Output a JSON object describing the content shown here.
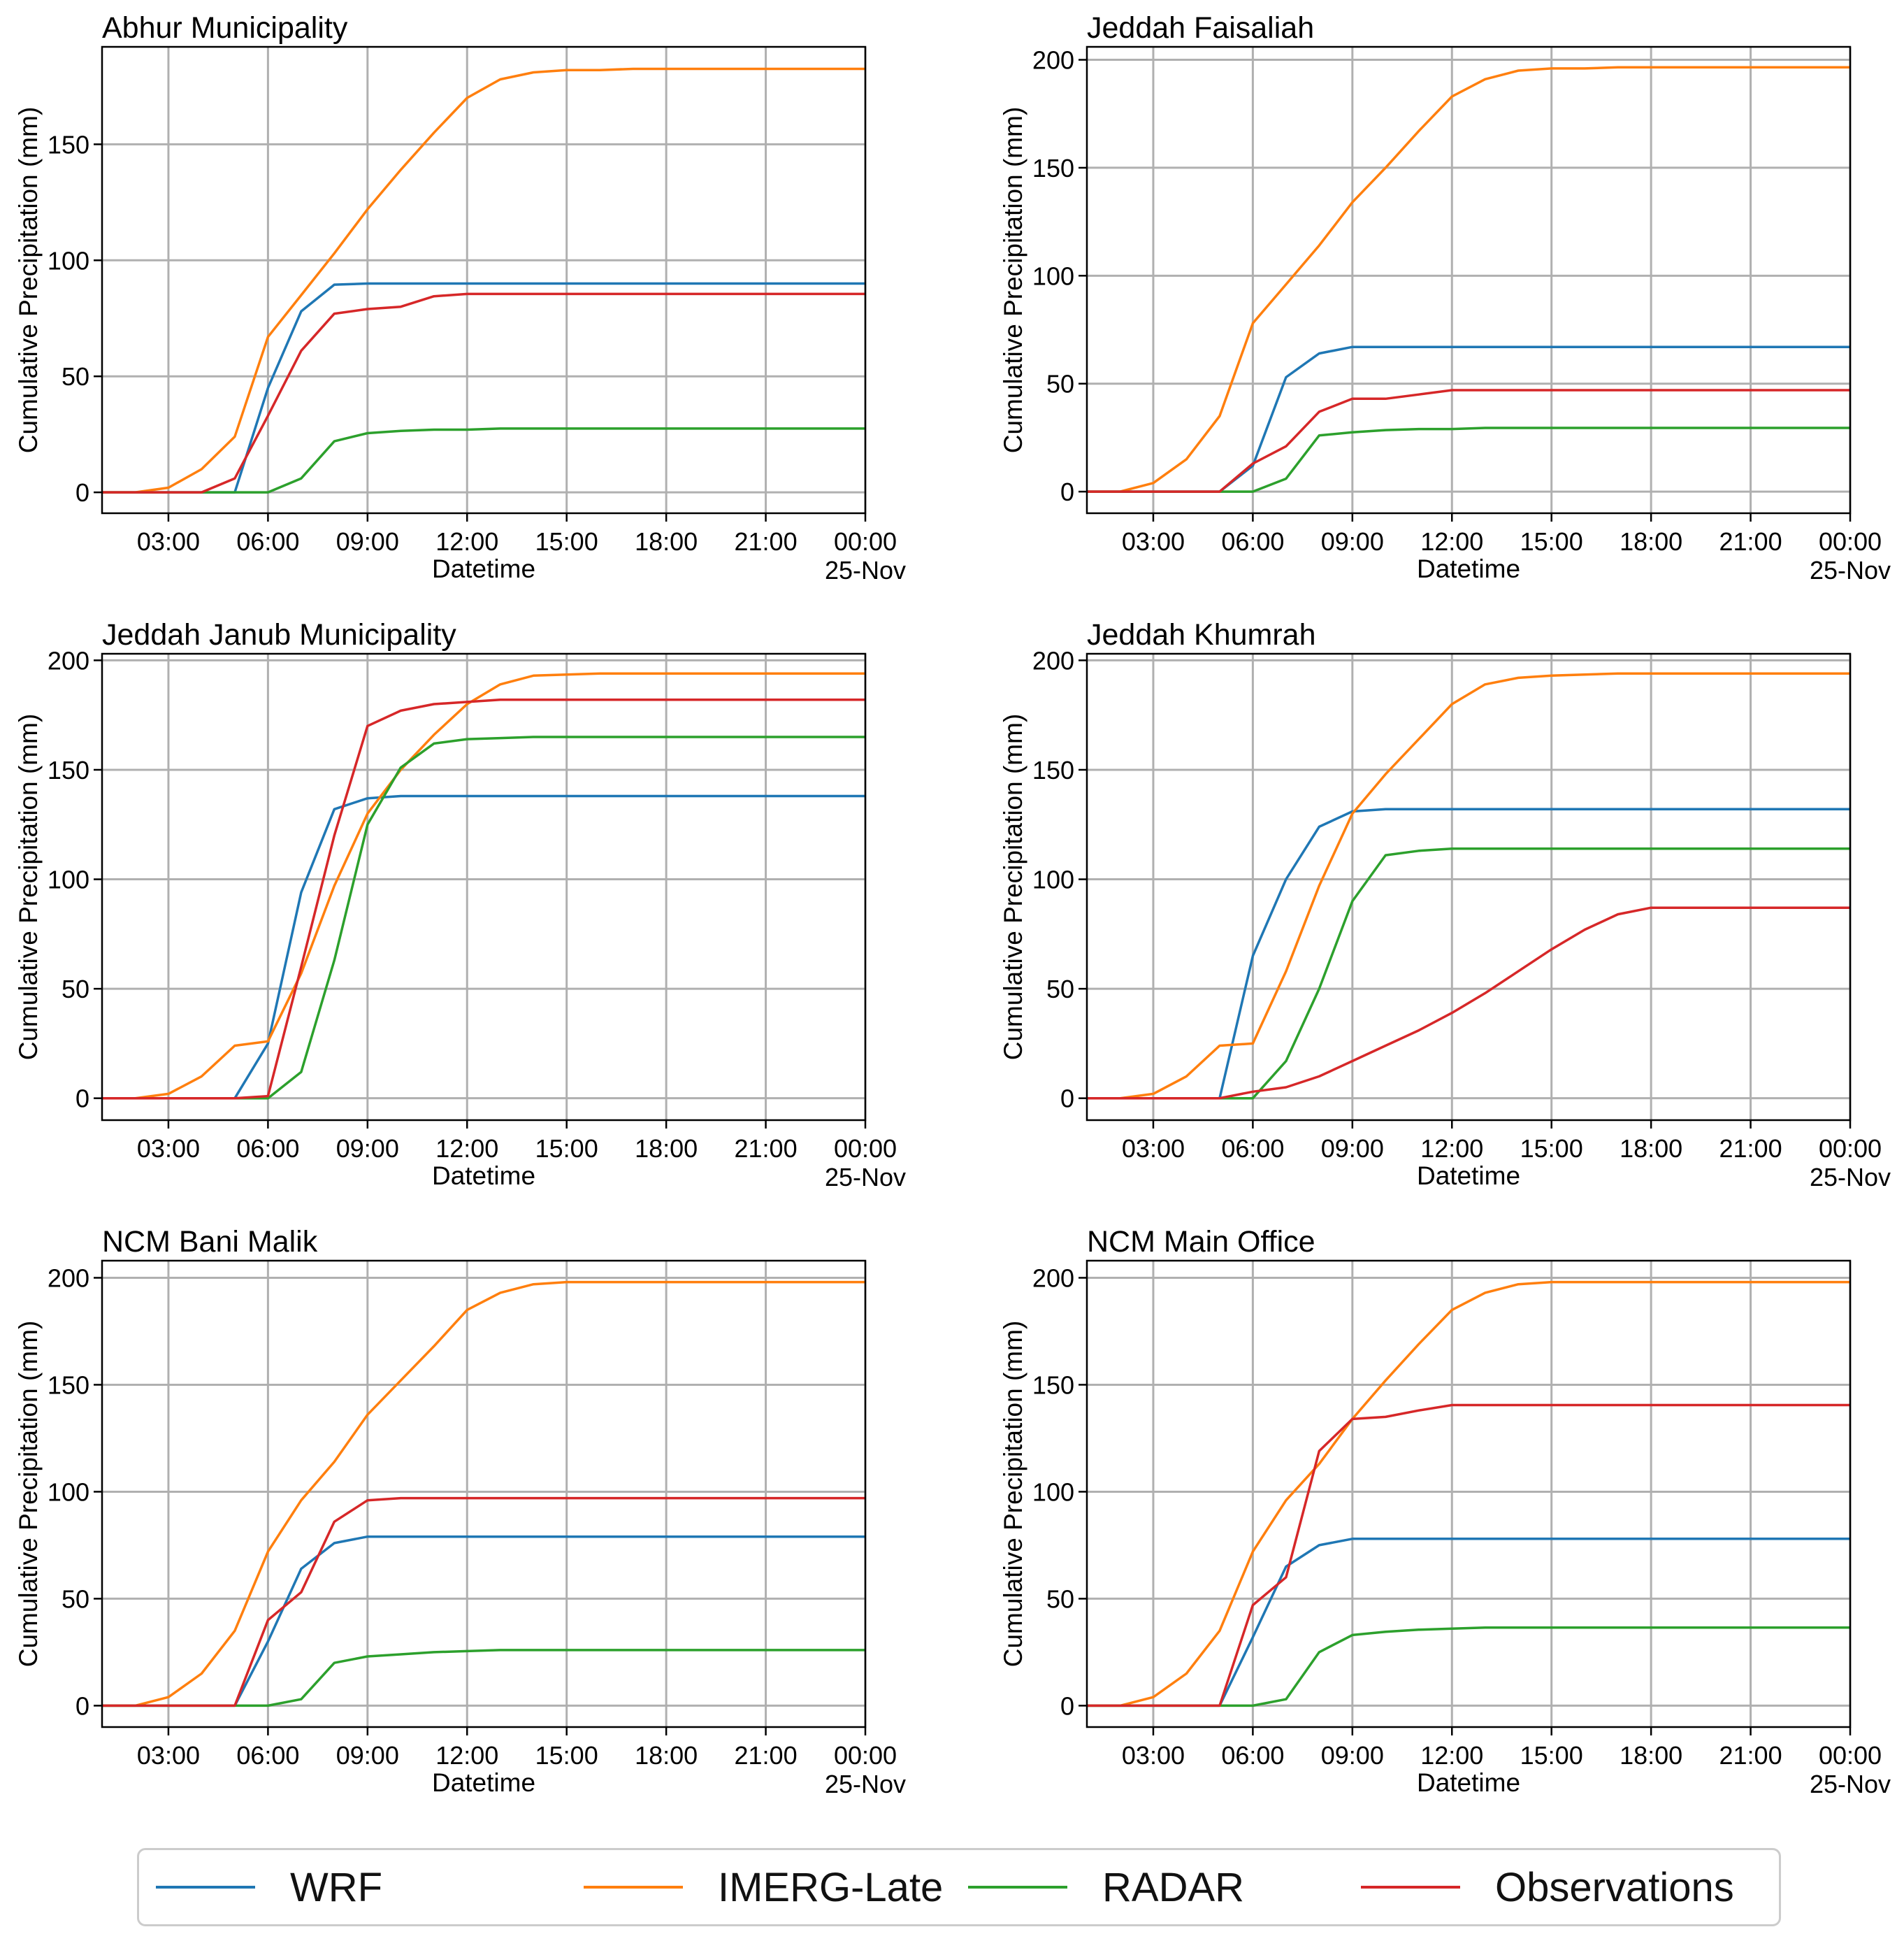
{
  "chart_data": [
    {
      "type": "line",
      "title": "Abhur Municipality",
      "xlabel": "Datetime",
      "ylabel": "Cumulative Precipitation (mm)",
      "xlim": [
        1,
        24
      ],
      "ylim": [
        -9,
        192
      ],
      "yticks": [
        0,
        50,
        100,
        150
      ],
      "x": [
        1,
        2,
        3,
        4,
        5,
        6,
        7,
        8,
        9,
        10,
        11,
        12,
        13,
        14,
        15,
        16,
        17,
        18,
        19,
        20,
        21,
        22,
        23,
        24
      ],
      "series": [
        {
          "name": "WRF",
          "values": [
            0,
            0,
            0,
            0,
            0,
            45,
            78,
            89.5,
            90,
            90,
            90,
            90,
            90,
            90,
            90,
            90,
            90,
            90,
            90,
            90,
            90,
            90,
            90,
            90
          ]
        },
        {
          "name": "IMERG-Late",
          "values": [
            0,
            0,
            2,
            10,
            24,
            67,
            85,
            103,
            122,
            139,
            155,
            170,
            178,
            181,
            182,
            182,
            182.5,
            182.5,
            182.5,
            182.5,
            182.5,
            182.5,
            182.5,
            182.5
          ]
        },
        {
          "name": "RADAR",
          "values": [
            0,
            0,
            0,
            0,
            0,
            0,
            6,
            22,
            25.5,
            26.5,
            27,
            27,
            27.5,
            27.5,
            27.5,
            27.5,
            27.5,
            27.5,
            27.5,
            27.5,
            27.5,
            27.5,
            27.5,
            27.5
          ]
        },
        {
          "name": "Observations",
          "values": [
            0,
            0,
            0,
            0,
            6,
            33,
            61,
            77,
            79,
            80,
            84.5,
            85.5,
            85.5,
            85.5,
            85.5,
            85.5,
            85.5,
            85.5,
            85.5,
            85.5,
            85.5,
            85.5,
            85.5,
            85.5
          ]
        }
      ]
    },
    {
      "type": "line",
      "title": "Jeddah Faisaliah",
      "xlabel": "Datetime",
      "ylabel": "Cumulative Precipitation (mm)",
      "xlim": [
        1,
        24
      ],
      "ylim": [
        -10,
        206
      ],
      "yticks": [
        0,
        50,
        100,
        150,
        200
      ],
      "x": [
        1,
        2,
        3,
        4,
        5,
        6,
        7,
        8,
        9,
        10,
        11,
        12,
        13,
        14,
        15,
        16,
        17,
        18,
        19,
        20,
        21,
        22,
        23,
        24
      ],
      "series": [
        {
          "name": "WRF",
          "values": [
            0,
            0,
            0,
            0,
            0,
            12,
            53,
            64,
            67,
            67,
            67,
            67,
            67,
            67,
            67,
            67,
            67,
            67,
            67,
            67,
            67,
            67,
            67,
            67
          ]
        },
        {
          "name": "IMERG-Late",
          "values": [
            0,
            0,
            4,
            15,
            35,
            78,
            96,
            114,
            134,
            150,
            167,
            183,
            191,
            195,
            196,
            196,
            196.5,
            196.5,
            196.5,
            196.5,
            196.5,
            196.5,
            196.5,
            196.5
          ]
        },
        {
          "name": "RADAR",
          "values": [
            0,
            0,
            0,
            0,
            0,
            0,
            6,
            26,
            27.5,
            28.5,
            29,
            29,
            29.5,
            29.5,
            29.5,
            29.5,
            29.5,
            29.5,
            29.5,
            29.5,
            29.5,
            29.5,
            29.5,
            29.5
          ]
        },
        {
          "name": "Observations",
          "values": [
            0,
            0,
            0,
            0,
            0,
            13,
            21,
            37,
            43,
            43,
            45,
            47,
            47,
            47,
            47,
            47,
            47,
            47,
            47,
            47,
            47,
            47,
            47,
            47
          ]
        }
      ]
    },
    {
      "type": "line",
      "title": "Jeddah Janub Municipality",
      "xlabel": "Datetime",
      "ylabel": "Cumulative Precipitation (mm)",
      "xlim": [
        1,
        24
      ],
      "ylim": [
        -10,
        203
      ],
      "yticks": [
        0,
        50,
        100,
        150,
        200
      ],
      "x": [
        1,
        2,
        3,
        4,
        5,
        6,
        7,
        8,
        9,
        10,
        11,
        12,
        13,
        14,
        15,
        16,
        17,
        18,
        19,
        20,
        21,
        22,
        23,
        24
      ],
      "series": [
        {
          "name": "WRF",
          "values": [
            0,
            0,
            0,
            0,
            0,
            25,
            94,
            132,
            137,
            138,
            138,
            138,
            138,
            138,
            138,
            138,
            138,
            138,
            138,
            138,
            138,
            138,
            138,
            138
          ]
        },
        {
          "name": "IMERG-Late",
          "values": [
            0,
            0,
            2,
            10,
            24,
            26,
            57,
            97,
            130,
            150,
            166,
            180,
            189,
            193,
            193.5,
            194,
            194,
            194,
            194,
            194,
            194,
            194,
            194,
            194
          ]
        },
        {
          "name": "RADAR",
          "values": [
            0,
            0,
            0,
            0,
            0,
            0,
            12,
            63,
            125,
            151,
            162,
            164,
            164.5,
            165,
            165,
            165,
            165,
            165,
            165,
            165,
            165,
            165,
            165,
            165
          ]
        },
        {
          "name": "Observations",
          "values": [
            0,
            0,
            0,
            0,
            0,
            1,
            60,
            120,
            170,
            177,
            180,
            181,
            182,
            182,
            182,
            182,
            182,
            182,
            182,
            182,
            182,
            182,
            182,
            182
          ]
        }
      ]
    },
    {
      "type": "line",
      "title": "Jeddah Khumrah",
      "xlabel": "Datetime",
      "ylabel": "Cumulative Precipitation (mm)",
      "xlim": [
        1,
        24
      ],
      "ylim": [
        -10,
        203
      ],
      "yticks": [
        0,
        50,
        100,
        150,
        200
      ],
      "x": [
        1,
        2,
        3,
        4,
        5,
        6,
        7,
        8,
        9,
        10,
        11,
        12,
        13,
        14,
        15,
        16,
        17,
        18,
        19,
        20,
        21,
        22,
        23,
        24
      ],
      "series": [
        {
          "name": "WRF",
          "values": [
            0,
            0,
            0,
            0,
            0,
            65,
            100,
            124,
            131,
            132,
            132,
            132,
            132,
            132,
            132,
            132,
            132,
            132,
            132,
            132,
            132,
            132,
            132,
            132
          ]
        },
        {
          "name": "IMERG-Late",
          "values": [
            0,
            0,
            2,
            10,
            24,
            25,
            58,
            97,
            130,
            148,
            164,
            180,
            189,
            192,
            193,
            193.5,
            194,
            194,
            194,
            194,
            194,
            194,
            194,
            194
          ]
        },
        {
          "name": "RADAR",
          "values": [
            0,
            0,
            0,
            0,
            0,
            0,
            17,
            50,
            90,
            111,
            113,
            114,
            114,
            114,
            114,
            114,
            114,
            114,
            114,
            114,
            114,
            114,
            114,
            114
          ]
        },
        {
          "name": "Observations",
          "values": [
            0,
            0,
            0,
            0,
            0,
            3,
            5,
            10,
            17,
            24,
            31,
            39,
            48,
            58,
            68,
            77,
            84,
            87,
            87,
            87,
            87,
            87,
            87,
            87
          ]
        }
      ]
    },
    {
      "type": "line",
      "title": "NCM Bani Malik",
      "xlabel": "Datetime",
      "ylabel": "Cumulative Precipitation (mm)",
      "xlim": [
        1,
        24
      ],
      "ylim": [
        -10,
        208
      ],
      "yticks": [
        0,
        50,
        100,
        150,
        200
      ],
      "x": [
        1,
        2,
        3,
        4,
        5,
        6,
        7,
        8,
        9,
        10,
        11,
        12,
        13,
        14,
        15,
        16,
        17,
        18,
        19,
        20,
        21,
        22,
        23,
        24
      ],
      "series": [
        {
          "name": "WRF",
          "values": [
            0,
            0,
            0,
            0,
            0,
            30,
            64,
            76,
            79,
            79,
            79,
            79,
            79,
            79,
            79,
            79,
            79,
            79,
            79,
            79,
            79,
            79,
            79,
            79
          ]
        },
        {
          "name": "IMERG-Late",
          "values": [
            0,
            0,
            4,
            15,
            35,
            72,
            96,
            114,
            136,
            152,
            168,
            185,
            193,
            197,
            198,
            198,
            198,
            198,
            198,
            198,
            198,
            198,
            198,
            198
          ]
        },
        {
          "name": "RADAR",
          "values": [
            0,
            0,
            0,
            0,
            0,
            0,
            3,
            20,
            23,
            24,
            25,
            25.5,
            26,
            26,
            26,
            26,
            26,
            26,
            26,
            26,
            26,
            26,
            26,
            26
          ]
        },
        {
          "name": "Observations",
          "values": [
            0,
            0,
            0,
            0,
            0,
            40,
            53,
            86,
            96,
            97,
            97,
            97,
            97,
            97,
            97,
            97,
            97,
            97,
            97,
            97,
            97,
            97,
            97,
            97
          ]
        }
      ]
    },
    {
      "type": "line",
      "title": "NCM Main Office",
      "xlabel": "Datetime",
      "ylabel": "Cumulative Precipitation (mm)",
      "xlim": [
        1,
        24
      ],
      "ylim": [
        -10,
        208
      ],
      "yticks": [
        0,
        50,
        100,
        150,
        200
      ],
      "x": [
        1,
        2,
        3,
        4,
        5,
        6,
        7,
        8,
        9,
        10,
        11,
        12,
        13,
        14,
        15,
        16,
        17,
        18,
        19,
        20,
        21,
        22,
        23,
        24
      ],
      "series": [
        {
          "name": "WRF",
          "values": [
            0,
            0,
            0,
            0,
            0,
            32,
            65,
            75,
            78,
            78,
            78,
            78,
            78,
            78,
            78,
            78,
            78,
            78,
            78,
            78,
            78,
            78,
            78,
            78
          ]
        },
        {
          "name": "IMERG-Late",
          "values": [
            0,
            0,
            4,
            15,
            35,
            72,
            96,
            113,
            134,
            152,
            169,
            185,
            193,
            197,
            198,
            198,
            198,
            198,
            198,
            198,
            198,
            198,
            198,
            198
          ]
        },
        {
          "name": "RADAR",
          "values": [
            0,
            0,
            0,
            0,
            0,
            0,
            3,
            25,
            33,
            34.5,
            35.5,
            36,
            36.5,
            36.5,
            36.5,
            36.5,
            36.5,
            36.5,
            36.5,
            36.5,
            36.5,
            36.5,
            36.5,
            36.5
          ]
        },
        {
          "name": "Observations",
          "values": [
            0,
            0,
            0,
            0,
            0,
            47,
            60,
            119,
            134,
            135,
            138,
            140.5,
            140.5,
            140.5,
            140.5,
            140.5,
            140.5,
            140.5,
            140.5,
            140.5,
            140.5,
            140.5,
            140.5,
            140.5
          ]
        }
      ]
    }
  ],
  "xticks": [
    {
      "value": 3,
      "label": "03:00"
    },
    {
      "value": 6,
      "label": "06:00"
    },
    {
      "value": 9,
      "label": "09:00"
    },
    {
      "value": 12,
      "label": "12:00"
    },
    {
      "value": 15,
      "label": "15:00"
    },
    {
      "value": 18,
      "label": "18:00"
    },
    {
      "value": 21,
      "label": "21:00"
    },
    {
      "value": 24,
      "label": "00:00"
    }
  ],
  "xtick_sublabel": "25-Nov",
  "legend": {
    "items": [
      {
        "name": "WRF",
        "color": "#1f77b4"
      },
      {
        "name": "IMERG-Late",
        "color": "#ff7f0e"
      },
      {
        "name": "RADAR",
        "color": "#2ca02c"
      },
      {
        "name": "Observations",
        "color": "#d62728"
      }
    ]
  }
}
